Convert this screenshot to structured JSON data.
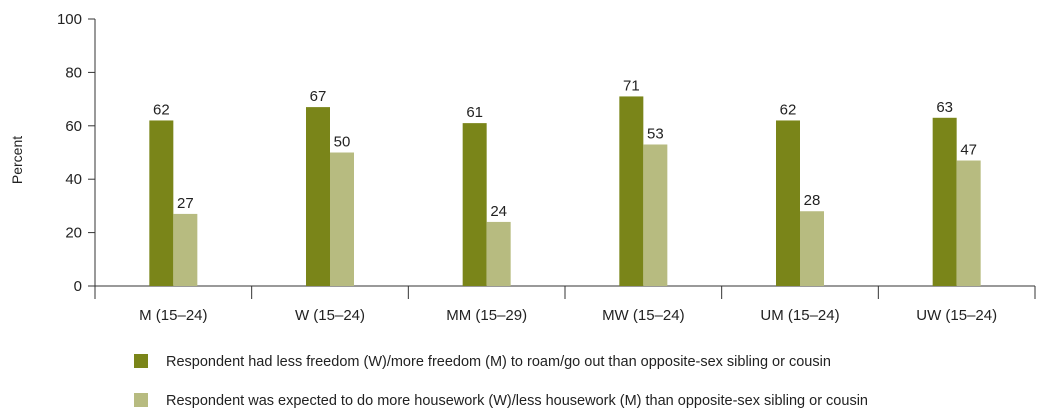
{
  "chart_data": {
    "type": "bar",
    "ylabel": "Percent",
    "ylim": [
      0,
      100
    ],
    "yticks": [
      0,
      20,
      40,
      60,
      80,
      100
    ],
    "categories": [
      "M (15–24)",
      "W (15–24)",
      "MM (15–29)",
      "MW (15–24)",
      "UM (15–24)",
      "UW (15–24)"
    ],
    "series": [
      {
        "name": "Respondent had less freedom (W)/more freedom (M) to roam/go out than opposite-sex sibling or cousin",
        "color": "#7a8519",
        "values": [
          62,
          67,
          61,
          71,
          62,
          63
        ]
      },
      {
        "name": "Respondent was expected to do more housework (W)/less housework (M) than opposite-sex sibling or cousin",
        "color": "#b7bb80",
        "values": [
          27,
          50,
          24,
          53,
          28,
          47
        ]
      }
    ],
    "legend": "bottom-left",
    "grid": false
  }
}
